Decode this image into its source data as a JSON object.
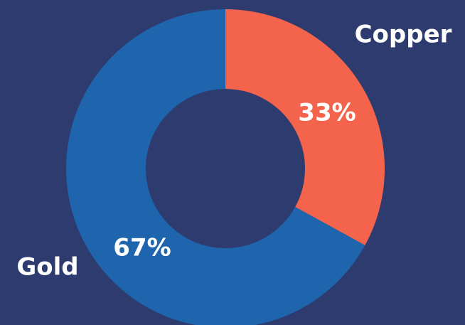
{
  "chart_data": {
    "type": "donut",
    "categories": [
      "Copper",
      "Gold"
    ],
    "values": [
      33,
      67
    ],
    "value_labels": [
      "33%",
      "67%"
    ],
    "colors": [
      "#f4644c",
      "#1f65ad"
    ]
  }
}
